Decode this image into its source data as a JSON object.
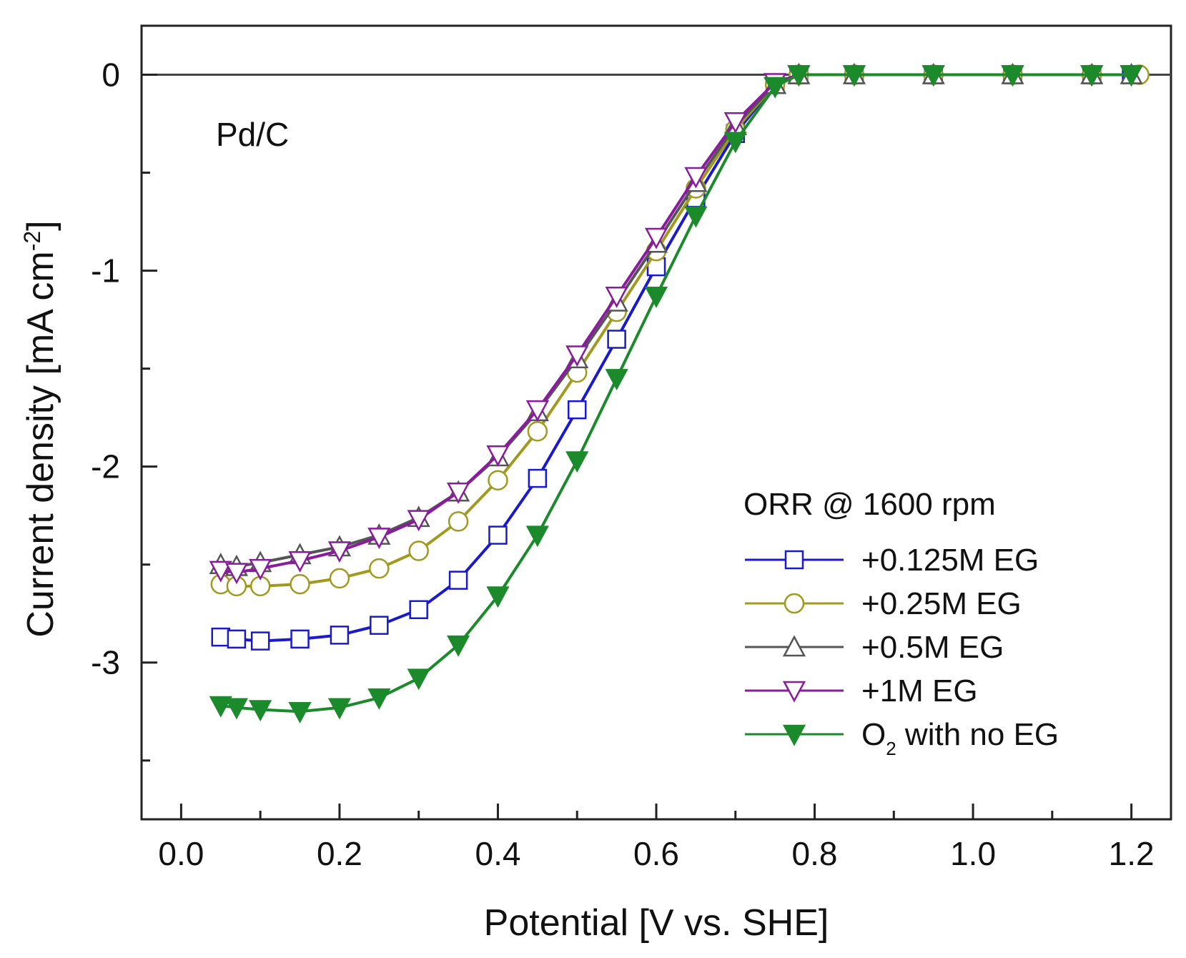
{
  "chart_data": {
    "type": "line",
    "title": "",
    "annotation": "Pd/C",
    "xlabel": "Potential [V vs. SHE]",
    "ylabel": "Current density [mA cm",
    "ylabel_sup": "-2",
    "ylabel_end": "]",
    "xlim": [
      -0.05,
      1.25
    ],
    "ylim": [
      -3.8,
      0.25
    ],
    "xticks": [
      0.0,
      0.2,
      0.4,
      0.6,
      0.8,
      1.0,
      1.2
    ],
    "xtick_labels": [
      "0.0",
      "0.2",
      "0.4",
      "0.6",
      "0.8",
      "1.0",
      "1.2"
    ],
    "yticks": [
      0,
      -1,
      -2,
      -3
    ],
    "ytick_labels": [
      "0",
      "-1",
      "-2",
      "-3"
    ],
    "legend_title": "ORR @ 1600 rpm",
    "legend_position": "bottom-right",
    "zero_line": true,
    "series": [
      {
        "name": "+0.125M EG",
        "label_parts": [
          "+0.125M EG"
        ],
        "color": "#1a1acc",
        "marker": "square",
        "x": [
          0.05,
          0.07,
          0.1,
          0.15,
          0.2,
          0.25,
          0.3,
          0.35,
          0.4,
          0.45,
          0.5,
          0.55,
          0.6,
          0.65,
          0.7,
          0.75,
          0.78,
          0.85,
          0.95,
          1.05,
          1.15,
          1.2
        ],
        "y": [
          -2.87,
          -2.88,
          -2.89,
          -2.88,
          -2.86,
          -2.81,
          -2.73,
          -2.58,
          -2.35,
          -2.06,
          -1.71,
          -1.35,
          -0.98,
          -0.63,
          -0.3,
          -0.05,
          0.0,
          0.0,
          0.0,
          0.0,
          0.0,
          0.0
        ]
      },
      {
        "name": "+0.25M EG",
        "label_parts": [
          "+0.25M EG"
        ],
        "color": "#a09a1e",
        "marker": "circle",
        "x": [
          0.05,
          0.07,
          0.1,
          0.15,
          0.2,
          0.25,
          0.3,
          0.35,
          0.4,
          0.45,
          0.5,
          0.55,
          0.6,
          0.65,
          0.7,
          0.75,
          0.78,
          0.85,
          0.95,
          1.05,
          1.15,
          1.21
        ],
        "y": [
          -2.6,
          -2.61,
          -2.61,
          -2.6,
          -2.57,
          -2.52,
          -2.43,
          -2.28,
          -2.07,
          -1.82,
          -1.52,
          -1.21,
          -0.9,
          -0.58,
          -0.28,
          -0.05,
          0.0,
          0.0,
          0.0,
          0.0,
          0.0,
          0.0
        ]
      },
      {
        "name": "+0.5M EG",
        "label_parts": [
          "+0.5M EG"
        ],
        "color": "#555555",
        "marker": "triangle-up",
        "x": [
          0.05,
          0.07,
          0.1,
          0.15,
          0.2,
          0.25,
          0.3,
          0.35,
          0.4,
          0.45,
          0.5,
          0.55,
          0.6,
          0.65,
          0.7,
          0.75,
          0.78,
          0.85,
          0.95,
          1.05,
          1.15,
          1.2
        ],
        "y": [
          -2.5,
          -2.51,
          -2.49,
          -2.45,
          -2.41,
          -2.35,
          -2.26,
          -2.13,
          -1.95,
          -1.72,
          -1.45,
          -1.16,
          -0.86,
          -0.55,
          -0.26,
          -0.05,
          0.0,
          0.0,
          0.0,
          0.0,
          0.0,
          0.0
        ]
      },
      {
        "name": "+1M EG",
        "label_parts": [
          "+1M EG"
        ],
        "color": "#8a1a9e",
        "marker": "triangle-down",
        "x": [
          0.05,
          0.07,
          0.1,
          0.15,
          0.2,
          0.25,
          0.3,
          0.35,
          0.4,
          0.45,
          0.5,
          0.55,
          0.6,
          0.65,
          0.7,
          0.75,
          0.78,
          0.85,
          0.95,
          1.05,
          1.15,
          1.2
        ],
        "y": [
          -2.53,
          -2.54,
          -2.52,
          -2.48,
          -2.43,
          -2.36,
          -2.27,
          -2.13,
          -1.94,
          -1.71,
          -1.43,
          -1.13,
          -0.83,
          -0.52,
          -0.24,
          -0.04,
          0.0,
          0.0,
          0.0,
          0.0,
          0.0,
          0.0
        ]
      },
      {
        "name": "O2 with no EG",
        "label_parts": [
          "O",
          "2",
          " with no EG"
        ],
        "color": "#1a8a2a",
        "marker": "triangle-down-filled",
        "x": [
          0.05,
          0.07,
          0.1,
          0.15,
          0.2,
          0.25,
          0.3,
          0.35,
          0.4,
          0.45,
          0.5,
          0.55,
          0.6,
          0.65,
          0.7,
          0.75,
          0.78,
          0.85,
          0.95,
          1.05,
          1.15,
          1.2
        ],
        "y": [
          -3.22,
          -3.23,
          -3.24,
          -3.25,
          -3.23,
          -3.18,
          -3.08,
          -2.91,
          -2.66,
          -2.35,
          -1.97,
          -1.55,
          -1.13,
          -0.72,
          -0.34,
          -0.06,
          0.0,
          0.0,
          0.0,
          0.0,
          0.0,
          0.0
        ]
      }
    ]
  }
}
